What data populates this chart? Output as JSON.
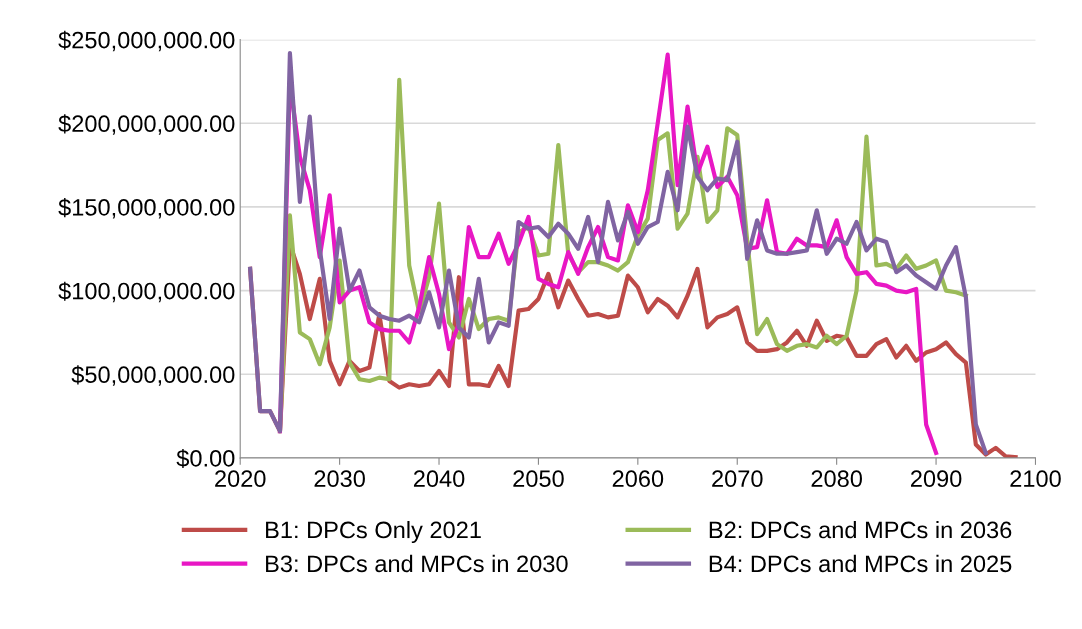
{
  "chart_data": {
    "type": "line",
    "x": [
      2021,
      2022,
      2023,
      2024,
      2025,
      2026,
      2027,
      2028,
      2029,
      2030,
      2031,
      2032,
      2033,
      2034,
      2035,
      2036,
      2037,
      2038,
      2039,
      2040,
      2041,
      2042,
      2043,
      2044,
      2045,
      2046,
      2047,
      2048,
      2049,
      2050,
      2051,
      2052,
      2053,
      2054,
      2055,
      2056,
      2057,
      2058,
      2059,
      2060,
      2061,
      2062,
      2063,
      2064,
      2065,
      2066,
      2067,
      2068,
      2069,
      2070,
      2071,
      2072,
      2073,
      2074,
      2075,
      2076,
      2077,
      2078,
      2079,
      2080,
      2081,
      2082,
      2083,
      2084,
      2085,
      2086,
      2087,
      2088,
      2089,
      2090,
      2091,
      2092,
      2093,
      2094,
      2095,
      2096,
      2097,
      2098
    ],
    "series": [
      {
        "name": "B1: DPCs Only 2021",
        "color": "#be4b48",
        "values": [
          113000000,
          28000000,
          28000000,
          16000000,
          128000000,
          110000000,
          83000000,
          107000000,
          58000000,
          44000000,
          58000000,
          52000000,
          54000000,
          86000000,
          46000000,
          42000000,
          44000000,
          43000000,
          44000000,
          52000000,
          43000000,
          108000000,
          44000000,
          44000000,
          43000000,
          55000000,
          43000000,
          88000000,
          89000000,
          95000000,
          110000000,
          90000000,
          106000000,
          95000000,
          85000000,
          86000000,
          84000000,
          85000000,
          109000000,
          102000000,
          87000000,
          95000000,
          91000000,
          84000000,
          97000000,
          113000000,
          78000000,
          84000000,
          86000000,
          90000000,
          69000000,
          64000000,
          64000000,
          65000000,
          69000000,
          76000000,
          67000000,
          82000000,
          70000000,
          73000000,
          72000000,
          61000000,
          61000000,
          68000000,
          71000000,
          60000000,
          67000000,
          58000000,
          63000000,
          65000000,
          69000000,
          62000000,
          57000000,
          8000000,
          2000000,
          6000000,
          1000000,
          500000
        ]
      },
      {
        "name": "B2: DPCs and MPCs in 2036",
        "color": "#9bbb59",
        "values": [
          null,
          null,
          null,
          16000000,
          145000000,
          75000000,
          71000000,
          56000000,
          78000000,
          118000000,
          57000000,
          47000000,
          46000000,
          48000000,
          47000000,
          226000000,
          115000000,
          87000000,
          108000000,
          152000000,
          81000000,
          72000000,
          95000000,
          77000000,
          83000000,
          84000000,
          82000000,
          135000000,
          138000000,
          121000000,
          122000000,
          187000000,
          122000000,
          111000000,
          117000000,
          117000000,
          115000000,
          112000000,
          117000000,
          133000000,
          143000000,
          190000000,
          194000000,
          137000000,
          146000000,
          180000000,
          141000000,
          148000000,
          197000000,
          193000000,
          130000000,
          74000000,
          83000000,
          68000000,
          64000000,
          67000000,
          68000000,
          66000000,
          73000000,
          68000000,
          73000000,
          100000000,
          192000000,
          115000000,
          116000000,
          113000000,
          121000000,
          113000000,
          115000000,
          118000000,
          100000000,
          99000000,
          97000000,
          null,
          null,
          null,
          null,
          null
        ]
      },
      {
        "name": "B3: DPCs and MPCs in 2030",
        "color": "#e817c4",
        "values": [
          null,
          null,
          null,
          16000000,
          225000000,
          180000000,
          160000000,
          120000000,
          157000000,
          93000000,
          100000000,
          102000000,
          81000000,
          77000000,
          76000000,
          76000000,
          69000000,
          90000000,
          120000000,
          98000000,
          65000000,
          80000000,
          138000000,
          120000000,
          120000000,
          134000000,
          116000000,
          128000000,
          144000000,
          107000000,
          104000000,
          102000000,
          123000000,
          110000000,
          126000000,
          138000000,
          120000000,
          118000000,
          151000000,
          135000000,
          160000000,
          200000000,
          241000000,
          163000000,
          210000000,
          170000000,
          186000000,
          162000000,
          168000000,
          157000000,
          125000000,
          126000000,
          154000000,
          123000000,
          122000000,
          131000000,
          127000000,
          127000000,
          126000000,
          142000000,
          120000000,
          110000000,
          111000000,
          104000000,
          103000000,
          100000000,
          99000000,
          101000000,
          20000000,
          3000000,
          null,
          null,
          null,
          null,
          null,
          null,
          null,
          null
        ]
      },
      {
        "name": "B4: DPCs and MPCs in 2025",
        "color": "#8064a2",
        "values": [
          113000000,
          28000000,
          28000000,
          16000000,
          242000000,
          153000000,
          204000000,
          125000000,
          83000000,
          137000000,
          100000000,
          112000000,
          90000000,
          85000000,
          83000000,
          82000000,
          85000000,
          81000000,
          99000000,
          78000000,
          112000000,
          78000000,
          72000000,
          107000000,
          69000000,
          81000000,
          79000000,
          141000000,
          137000000,
          138000000,
          132000000,
          140000000,
          134000000,
          125000000,
          144000000,
          117000000,
          153000000,
          130000000,
          147000000,
          128000000,
          138000000,
          141000000,
          171000000,
          148000000,
          198000000,
          168000000,
          160000000,
          167000000,
          166000000,
          189000000,
          119000000,
          142000000,
          124000000,
          122000000,
          122000000,
          123000000,
          124000000,
          148000000,
          122000000,
          131000000,
          128000000,
          141000000,
          124000000,
          131000000,
          129000000,
          111000000,
          115000000,
          109000000,
          105000000,
          101000000,
          115000000,
          126000000,
          96000000,
          20000000,
          3000000,
          null,
          null,
          null
        ]
      }
    ],
    "xlim": [
      2020,
      2100
    ],
    "xticks": [
      2020,
      2030,
      2040,
      2050,
      2060,
      2070,
      2080,
      2090,
      2100
    ],
    "ylim": [
      0,
      250000000
    ],
    "yticks": [
      {
        "value": 0,
        "label": "$0.00"
      },
      {
        "value": 50000000,
        "label": "$50,000,000.00"
      },
      {
        "value": 100000000,
        "label": "$100,000,000.00"
      },
      {
        "value": 150000000,
        "label": "$150,000,000.00"
      },
      {
        "value": 200000000,
        "label": "$200,000,000.00"
      },
      {
        "value": 250000000,
        "label": "$250,000,000.00"
      }
    ],
    "grid": "y",
    "legend": "bottom",
    "marker": "none",
    "line_style": "solid"
  }
}
